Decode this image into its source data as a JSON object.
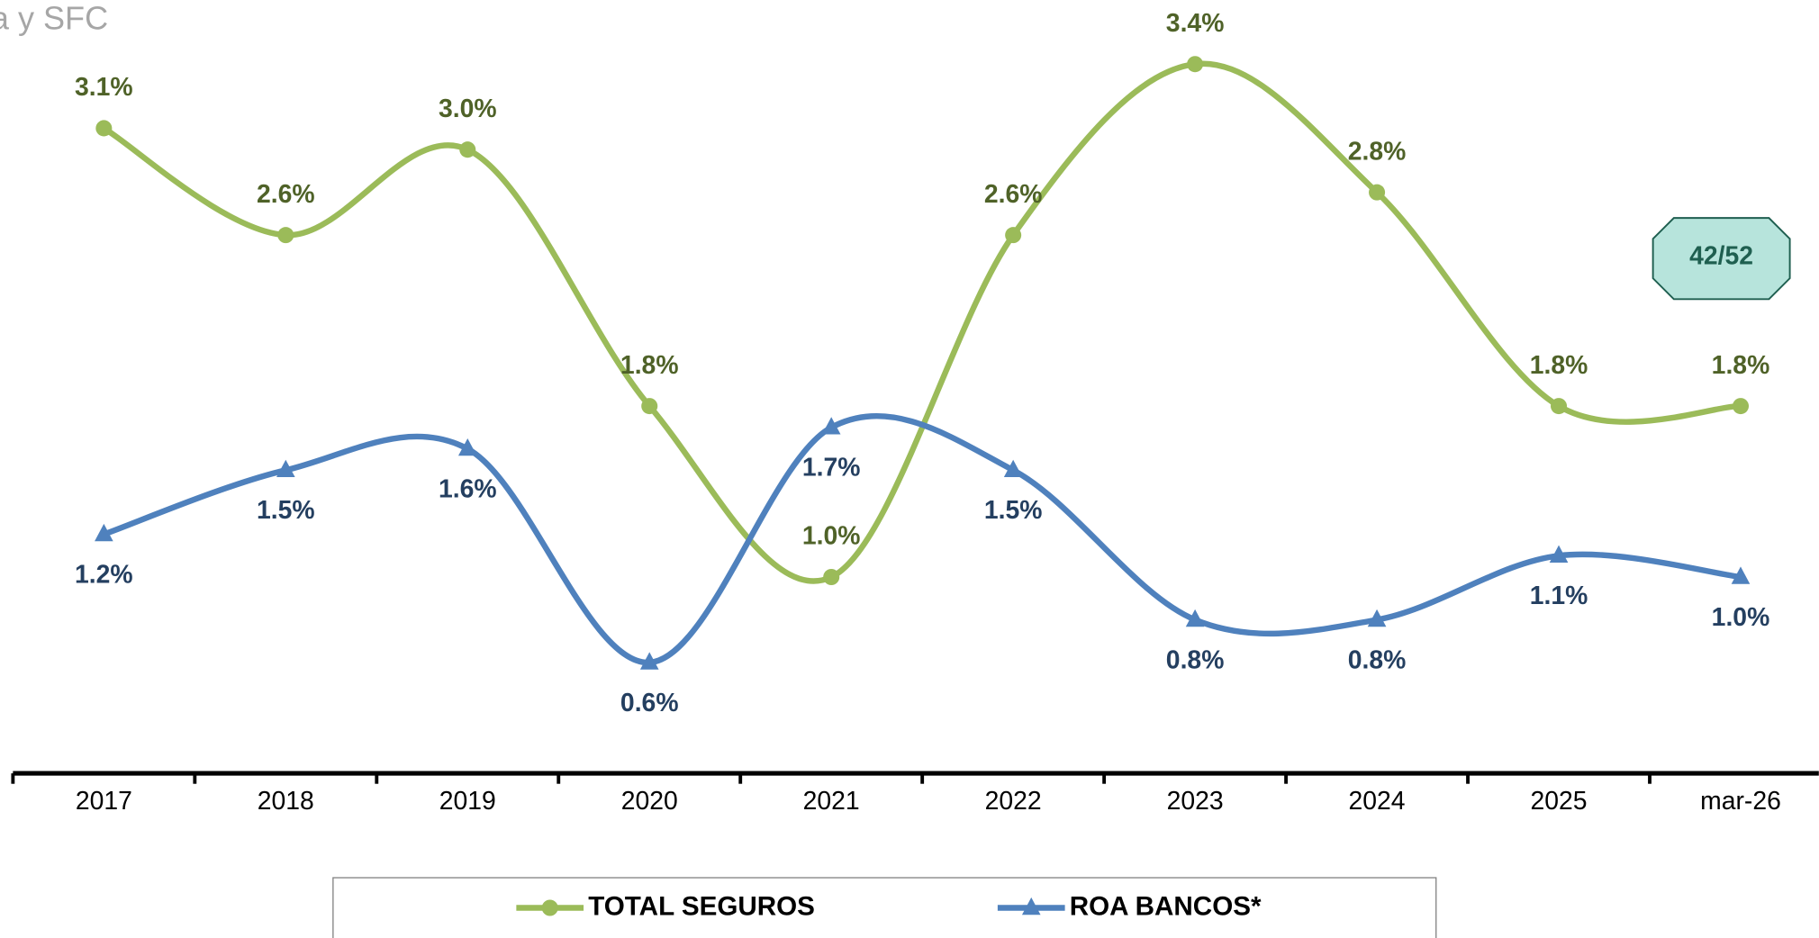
{
  "chart_data": {
    "type": "line",
    "source": "a y SFC",
    "annotation": "42/52",
    "categories": [
      "2017",
      "2018",
      "2019",
      "2020",
      "2021",
      "2022",
      "2023",
      "2024",
      "2025",
      "mar-26"
    ],
    "ylim": [
      0,
      3.7
    ],
    "series": [
      {
        "name": "TOTAL SEGUROS",
        "color": "#9bbb59",
        "label_color": "#4f6228",
        "marker": "circle",
        "values": [
          3.1,
          2.6,
          3.0,
          1.8,
          1.0,
          2.6,
          3.4,
          2.8,
          1.8,
          1.8
        ],
        "value_labels": [
          "3.1%",
          "2.6%",
          "3.0%",
          "1.8%",
          "1.0%",
          "2.6%",
          "3.4%",
          "2.8%",
          "1.8%",
          "1.8%"
        ]
      },
      {
        "name": "ROA BANCOS*",
        "color": "#4f81bd",
        "label_color": "#243f60",
        "marker": "triangle",
        "values": [
          1.2,
          1.5,
          1.6,
          0.6,
          1.7,
          1.5,
          0.8,
          0.8,
          1.1,
          1.0
        ],
        "value_labels": [
          "1.2%",
          "1.5%",
          "1.6%",
          "0.6%",
          "1.7%",
          "1.5%",
          "0.8%",
          "0.8%",
          "1.1%",
          "1.0%"
        ]
      }
    ]
  }
}
